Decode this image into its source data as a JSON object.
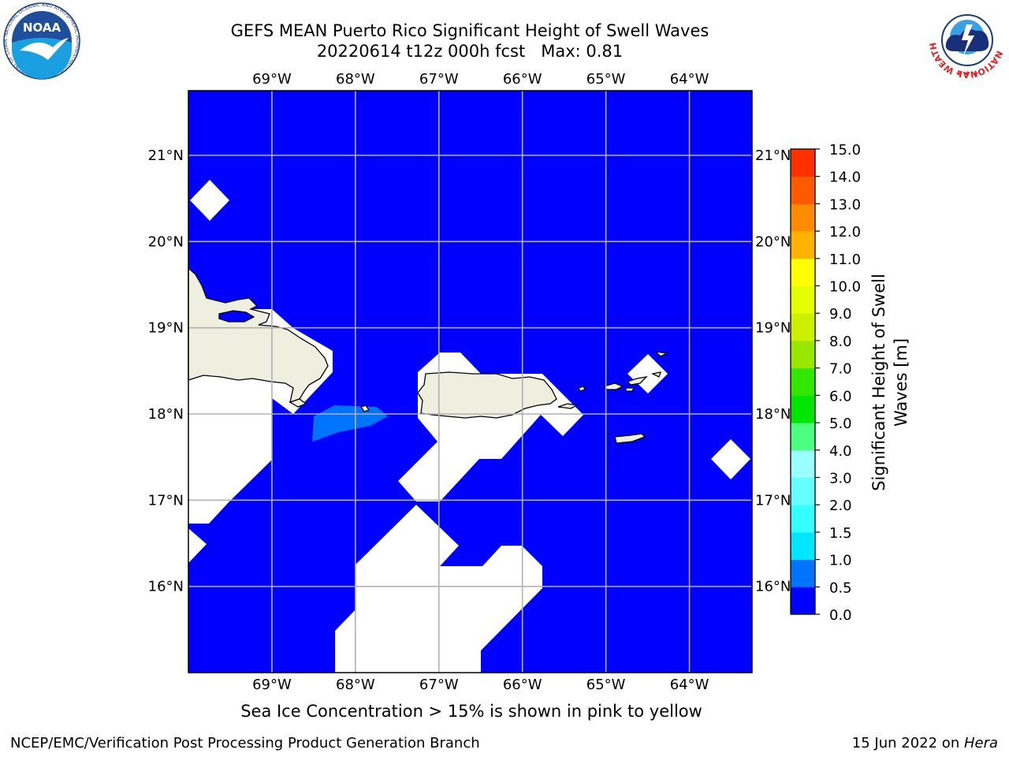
{
  "header": {
    "title_line1": "GEFS MEAN Puerto Rico Significant Height of Swell Waves",
    "title_line2": "20220614 t12z 000h fcst   Max: 0.81"
  },
  "logos": {
    "left": {
      "name": "noaa-logo",
      "text": "NOAA",
      "ring_text": "NATIONAL OCEANIC AND ATMOSPHERIC ADMINISTRATION · U.S. DEPARTMENT OF COMMERCE"
    },
    "right": {
      "name": "nws-logo",
      "ring_text": "NATIONAL WEATHER SERVICE"
    }
  },
  "map": {
    "region": "Puerto Rico",
    "lon_labels": [
      "69°W",
      "68°W",
      "67°W",
      "66°W",
      "65°W",
      "64°W"
    ],
    "lat_labels": [
      "21°N",
      "20°N",
      "19°N",
      "18°N",
      "17°N",
      "16°N"
    ],
    "lon_values": [
      -69,
      -68,
      -67,
      -66,
      -65,
      -64
    ],
    "lat_values": [
      21,
      20,
      19,
      18,
      17,
      16
    ],
    "extent": {
      "lon_min": -70,
      "lon_max": -63.25,
      "lat_min": 15,
      "lat_max": 21.75
    },
    "ocean_color": "#0000ff",
    "land_color": "#efefdf",
    "nodata_color": "#ffffff",
    "grid_color": "#b0b0b0",
    "max_value": 0.81
  },
  "colorbar": {
    "label": "Significant Height of Swell Waves [m]",
    "label_line1": "Significant Height of Swell",
    "label_line2": "Waves [m]",
    "ticks": [
      "0.0",
      "0.5",
      "1.0",
      "1.5",
      "2.0",
      "3.0",
      "4.0",
      "5.0",
      "6.0",
      "7.0",
      "8.0",
      "9.0",
      "10.0",
      "11.0",
      "12.0",
      "13.0",
      "14.0",
      "15.0"
    ],
    "colors": [
      "#0000ff",
      "#0073ff",
      "#00e6ff",
      "#33ffff",
      "#66ffff",
      "#99ffff",
      "#4dff80",
      "#00e600",
      "#33e600",
      "#99e600",
      "#ccf000",
      "#e6ff00",
      "#ffff00",
      "#ffb300",
      "#ff8c00",
      "#ff5a00",
      "#ff3000",
      "#ff0000"
    ]
  },
  "notes": {
    "ice": "Sea Ice Concentration > 15% is shown in pink to yellow"
  },
  "footer": {
    "left": "NCEP/EMC/Verification Post Processing Product Generation Branch",
    "right_date": "15 Jun 2022 on ",
    "right_host": "Hera"
  }
}
